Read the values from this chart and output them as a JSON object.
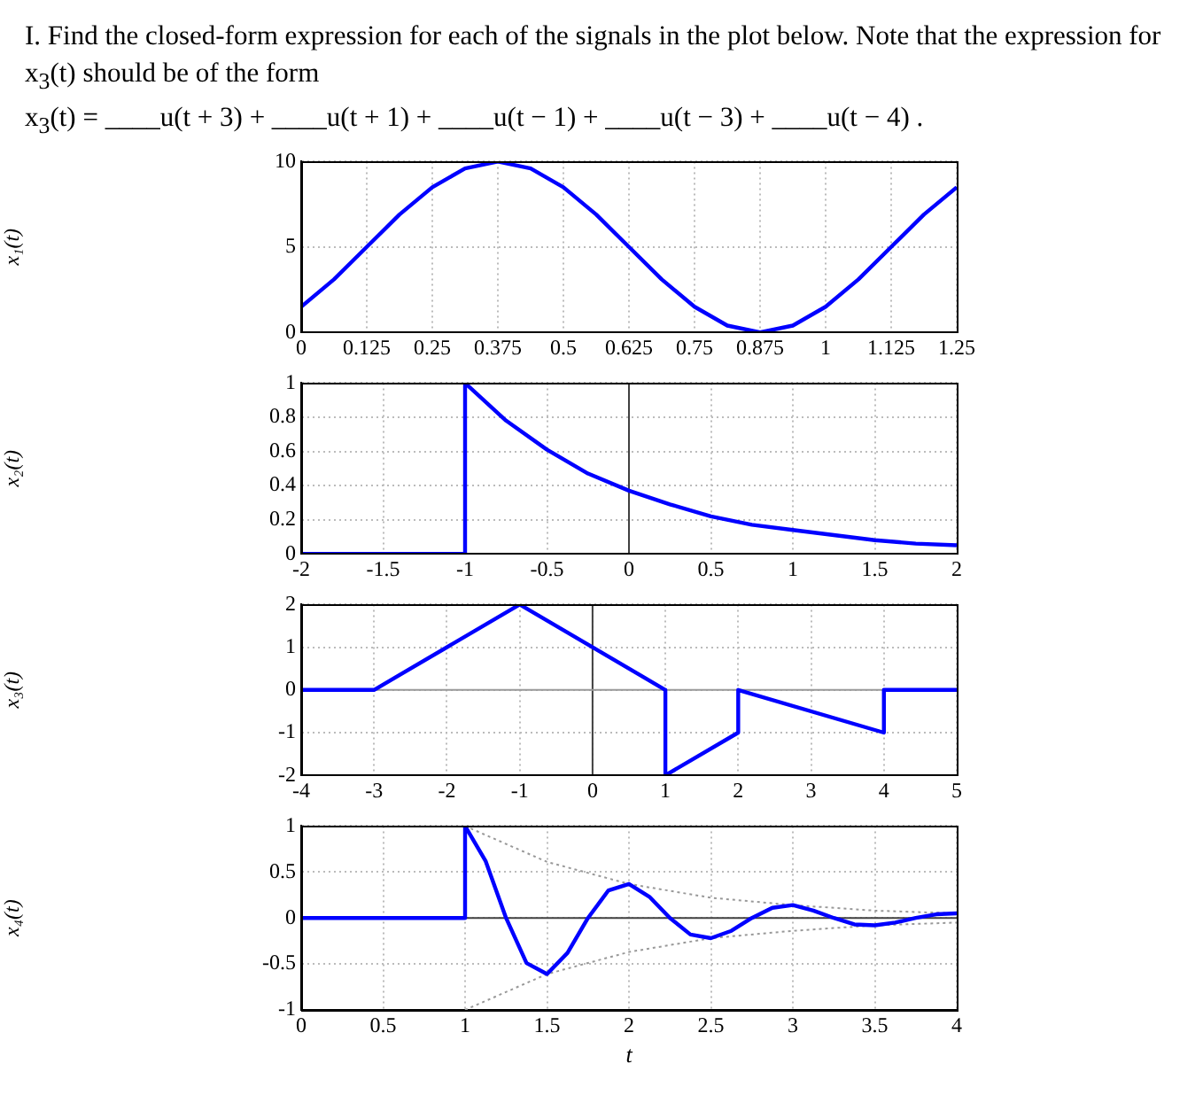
{
  "chart_data": [
    {
      "type": "line",
      "annotations": [
        "I. Find the closed-form expression for each of the signals in the plot below. Note that the expression for x$_{3}$(t) should be of the form",
        "x$_{3}$(t) = ____u(t + 3) + ____u(t + 1) + ____u(t − 1) + ____u(t − 3) + ____u(t − 4) ."
      ],
      "ylabel": "x₁(t)",
      "x": [
        0,
        0.0625,
        0.125,
        0.1875,
        0.25,
        0.3125,
        0.375,
        0.4375,
        0.5,
        0.5625,
        0.625,
        0.6875,
        0.75,
        0.8125,
        0.875,
        0.9375,
        1,
        1.0625,
        1.125,
        1.1875,
        1.25
      ],
      "series": [
        {
          "color": "#0000ff",
          "values": [
            1.5,
            3.1,
            5,
            6.9,
            8.5,
            9.6,
            10,
            9.6,
            8.5,
            6.9,
            5,
            3.1,
            1.5,
            0.4,
            0,
            0.4,
            1.5,
            3.1,
            5,
            6.9,
            8.5
          ]
        }
      ],
      "xlim": [
        0,
        1.25
      ],
      "xticks": [
        0,
        0.125,
        0.25,
        0.375,
        0.5,
        0.625,
        0.75,
        0.875,
        1,
        1.125,
        1.25
      ],
      "ylim": [
        0,
        10
      ],
      "yticks": [
        0,
        5,
        10
      ],
      "grid": true
    },
    {
      "type": "line",
      "ylabel": "x₂(t)",
      "x": [
        -2,
        -1,
        -1,
        -0.75,
        -0.5,
        -0.25,
        0,
        0.25,
        0.5,
        0.75,
        1,
        1.25,
        1.5,
        1.75,
        2
      ],
      "series": [
        {
          "color": "#0000ff",
          "values": [
            0,
            0,
            1,
            0.78,
            0.61,
            0.47,
            0.37,
            0.29,
            0.22,
            0.17,
            0.14,
            0.11,
            0.08,
            0.06,
            0.05
          ]
        }
      ],
      "xlim": [
        -2,
        2
      ],
      "xticks": [
        -2,
        -1.5,
        -1,
        -0.5,
        0,
        0.5,
        1,
        1.5,
        2
      ],
      "ylim": [
        0,
        1
      ],
      "yticks": [
        0,
        0.2,
        0.4,
        0.6,
        0.8,
        1
      ],
      "grid": true,
      "ref_lines": [
        {
          "axis": "x",
          "value": 0,
          "color": "#404040"
        }
      ]
    },
    {
      "type": "line",
      "ylabel": "x₃(t)",
      "x": [
        -4,
        -3,
        -1,
        1,
        1,
        2,
        2,
        4,
        4,
        5
      ],
      "series": [
        {
          "color": "#0000ff",
          "values": [
            0,
            0,
            2,
            0,
            -2,
            -1,
            0,
            -1,
            0,
            0
          ]
        }
      ],
      "xlim": [
        -4,
        5
      ],
      "xticks": [
        -4,
        -3,
        -2,
        -1,
        0,
        1,
        2,
        3,
        4,
        5
      ],
      "ylim": [
        -2,
        2
      ],
      "yticks": [
        -2,
        -1,
        0,
        1,
        2
      ],
      "grid": true,
      "ref_lines": [
        {
          "axis": "x",
          "value": 0,
          "color": "#404040"
        },
        {
          "axis": "y",
          "value": 0,
          "color": "#999999"
        }
      ]
    },
    {
      "type": "line",
      "ylabel": "x₄(t)",
      "xlabel": "t",
      "series": [
        {
          "color": "#0000ff",
          "x": [
            0,
            1,
            1,
            1.125,
            1.25,
            1.375,
            1.5,
            1.625,
            1.75,
            1.875,
            2,
            2.125,
            2.25,
            2.375,
            2.5,
            2.625,
            2.75,
            2.875,
            3,
            3.125,
            3.25,
            3.375,
            3.5,
            3.625,
            3.75,
            3.875,
            4
          ],
          "values": [
            0,
            0,
            1,
            0.62,
            0,
            -0.49,
            -0.61,
            -0.38,
            0,
            0.3,
            0.37,
            0.23,
            0,
            -0.18,
            -0.22,
            -0.14,
            0,
            0.11,
            0.14,
            0.08,
            0,
            -0.07,
            -0.08,
            -0.05,
            0,
            0.04,
            0.05
          ]
        },
        {
          "color": "#999999",
          "line_style": "dotted",
          "x": [
            1,
            1.5,
            2,
            2.5,
            3,
            3.5,
            4
          ],
          "values": [
            1,
            0.61,
            0.37,
            0.22,
            0.14,
            0.08,
            0.05
          ]
        },
        {
          "color": "#999999",
          "line_style": "dotted",
          "x": [
            1,
            1.5,
            2,
            2.5,
            3,
            3.5,
            4
          ],
          "values": [
            -1,
            -0.61,
            -0.37,
            -0.22,
            -0.14,
            -0.08,
            -0.05
          ]
        }
      ],
      "xlim": [
        0,
        4
      ],
      "xticks": [
        0,
        0.5,
        1,
        1.5,
        2,
        2.5,
        3,
        3.5,
        4
      ],
      "ylim": [
        -1,
        1
      ],
      "yticks": [
        -1,
        -0.5,
        0,
        0.5,
        1
      ],
      "grid": true,
      "ref_lines": [
        {
          "axis": "y",
          "value": 0,
          "color": "#404040"
        }
      ]
    }
  ]
}
